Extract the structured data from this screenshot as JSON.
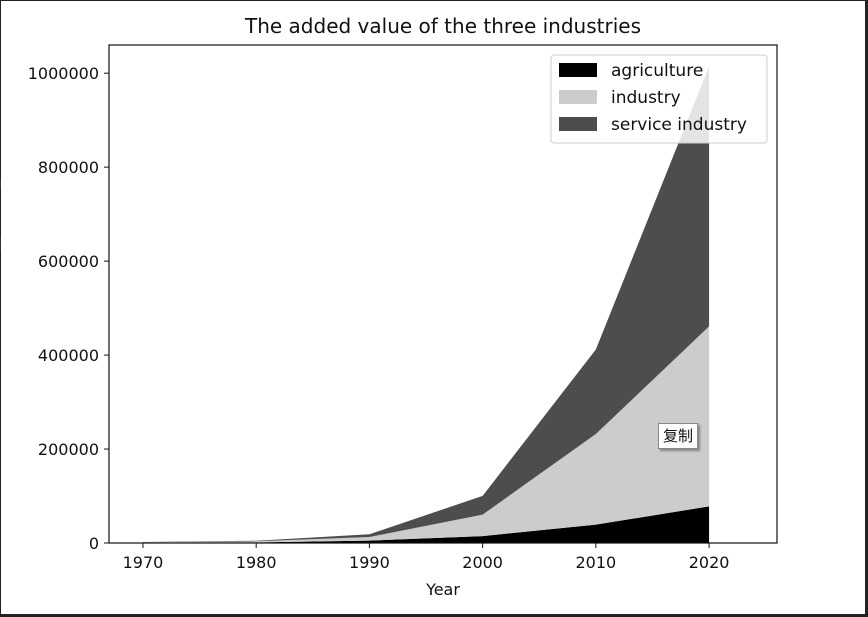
{
  "chart_data": {
    "type": "area",
    "stacked": true,
    "title": "The added value of the three industries",
    "xlabel": "Year",
    "ylabel": "",
    "x": [
      1970,
      1980,
      1990,
      2000,
      2010,
      2020
    ],
    "xlim": [
      1967,
      2026
    ],
    "ylim": [
      0,
      1060000
    ],
    "xticks": [
      1970,
      1980,
      1990,
      2000,
      2010,
      2020
    ],
    "yticks": [
      0,
      200000,
      400000,
      600000,
      800000,
      1000000
    ],
    "series": [
      {
        "name": "agriculture",
        "color": "#000000",
        "values": [
          800,
          1400,
          5000,
          14700,
          39000,
          78000
        ]
      },
      {
        "name": "industry",
        "color": "#cccccc",
        "values": [
          900,
          2200,
          7700,
          45700,
          193000,
          383000
        ]
      },
      {
        "name": "service industry",
        "color": "#4d4d4d",
        "values": [
          500,
          1300,
          5900,
          39900,
          180000,
          553000
        ]
      }
    ],
    "grid": false,
    "legend_position": "top-right"
  },
  "popup": {
    "label": "复制"
  }
}
